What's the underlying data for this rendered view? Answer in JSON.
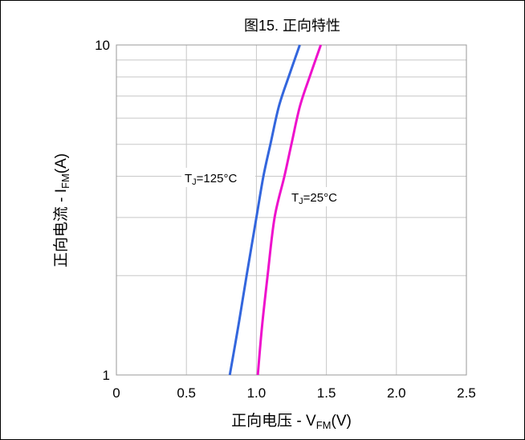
{
  "chart_data": {
    "type": "line",
    "title": "图15. 正向特性",
    "xlabel": {
      "prefix": "正向电压 - V",
      "sub": "FM",
      "suffix": "(V)"
    },
    "ylabel": {
      "prefix": "正向电流 - I",
      "sub": "FM",
      "suffix": "(A)"
    },
    "x_ticks": [
      "0",
      "0.5",
      "1.0",
      "1.5",
      "2.0",
      "2.5"
    ],
    "y_tick_labels": [
      "1",
      "10"
    ],
    "xlim": [
      0,
      2.5
    ],
    "ylim": [
      1,
      10
    ],
    "y_scale": "log",
    "grid": true,
    "series": [
      {
        "name": {
          "prefix": "T",
          "sub": "J",
          "suffix": "=125°C"
        },
        "color": "#3366dd",
        "x": [
          0.81,
          0.87,
          0.93,
          1.0,
          1.05,
          1.1,
          1.16,
          1.23,
          1.31
        ],
        "y": [
          1.0,
          1.4,
          2.0,
          3.0,
          4.0,
          5.0,
          6.5,
          8.0,
          10.0
        ]
      },
      {
        "name": {
          "prefix": "T",
          "sub": "J",
          "suffix": "=25°C"
        },
        "color": "#ee11cc",
        "x": [
          1.01,
          1.04,
          1.08,
          1.13,
          1.2,
          1.25,
          1.31,
          1.38,
          1.46
        ],
        "y": [
          1.0,
          1.4,
          2.0,
          3.0,
          4.0,
          5.0,
          6.5,
          8.0,
          10.0
        ]
      }
    ]
  }
}
